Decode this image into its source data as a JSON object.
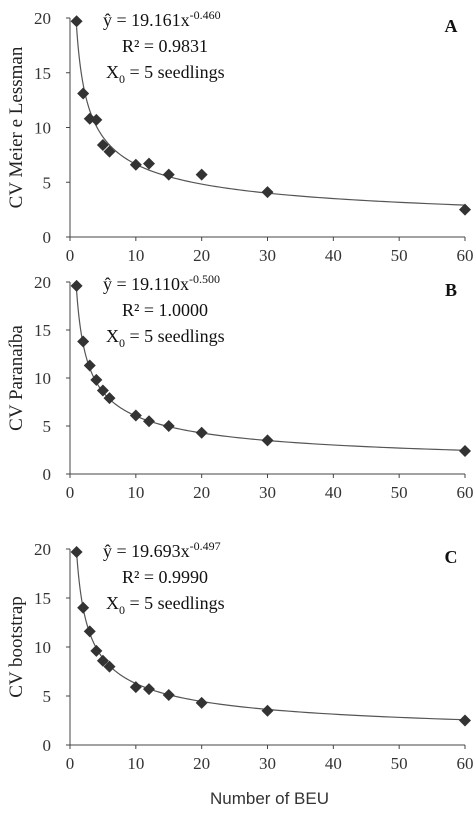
{
  "chart_data": [
    {
      "type": "scatter",
      "panel": "A",
      "ylabel": "CV Meier e Lessman",
      "xlabel": "",
      "xlim": [
        0,
        60
      ],
      "ylim": [
        0,
        20
      ],
      "xticks": [
        "0",
        "10",
        "20",
        "30",
        "40",
        "50",
        "60"
      ],
      "yticks": [
        "0",
        "5",
        "10",
        "15",
        "20"
      ],
      "equation_lhs": "ŷ = 19.161x",
      "equation_exp": "-0.460",
      "r2_text": "R² = 0.9831",
      "x0_main": "X",
      "x0_sub": "0",
      "x0_rest": " = 5 seedlings",
      "fit": {
        "a": 19.161,
        "b": -0.46
      },
      "series": [
        {
          "x": [
            1,
            2,
            3,
            4,
            5,
            6,
            10,
            12,
            15,
            20,
            30,
            60
          ],
          "y": [
            19.7,
            13.1,
            10.8,
            10.7,
            8.4,
            7.8,
            6.6,
            6.7,
            5.7,
            5.7,
            4.1,
            2.5
          ]
        }
      ]
    },
    {
      "type": "scatter",
      "panel": "B",
      "ylabel": "CV Paranaíba",
      "xlabel": "",
      "xlim": [
        0,
        60
      ],
      "ylim": [
        0,
        20
      ],
      "xticks": [
        "0",
        "10",
        "20",
        "30",
        "40",
        "50",
        "60"
      ],
      "yticks": [
        "0",
        "5",
        "10",
        "15",
        "20"
      ],
      "equation_lhs": "ŷ = 19.110x",
      "equation_exp": "-0.500",
      "r2_text": "R² = 1.0000",
      "x0_main": "X",
      "x0_sub": "0",
      "x0_rest": " = 5 seedlings",
      "fit": {
        "a": 19.11,
        "b": -0.5
      },
      "series": [
        {
          "x": [
            1,
            2,
            3,
            4,
            5,
            6,
            10,
            12,
            15,
            20,
            30,
            60
          ],
          "y": [
            19.6,
            13.8,
            11.3,
            9.8,
            8.7,
            7.9,
            6.1,
            5.5,
            5.0,
            4.3,
            3.5,
            2.4
          ]
        }
      ]
    },
    {
      "type": "scatter",
      "panel": "C",
      "ylabel": "CV bootstrap",
      "xlabel": "Number of BEU",
      "xlim": [
        0,
        60
      ],
      "ylim": [
        0,
        20
      ],
      "xticks": [
        "0",
        "10",
        "20",
        "30",
        "40",
        "50",
        "60"
      ],
      "yticks": [
        "0",
        "5",
        "10",
        "15",
        "20"
      ],
      "equation_lhs": "ŷ = 19.693x",
      "equation_exp": "-0.497",
      "r2_text": "R² = 0.9990",
      "x0_main": "X",
      "x0_sub": "0",
      "x0_rest": " = 5 seedlings",
      "fit": {
        "a": 19.693,
        "b": -0.497
      },
      "series": [
        {
          "x": [
            1,
            2,
            3,
            4,
            5,
            6,
            10,
            12,
            15,
            20,
            30,
            60
          ],
          "y": [
            19.7,
            14.0,
            11.6,
            9.6,
            8.6,
            8.0,
            5.9,
            5.7,
            5.1,
            4.3,
            3.5,
            2.5
          ]
        }
      ]
    }
  ],
  "colors": {
    "marker": "#333333",
    "curve": "#555555",
    "axis": "#444444"
  }
}
